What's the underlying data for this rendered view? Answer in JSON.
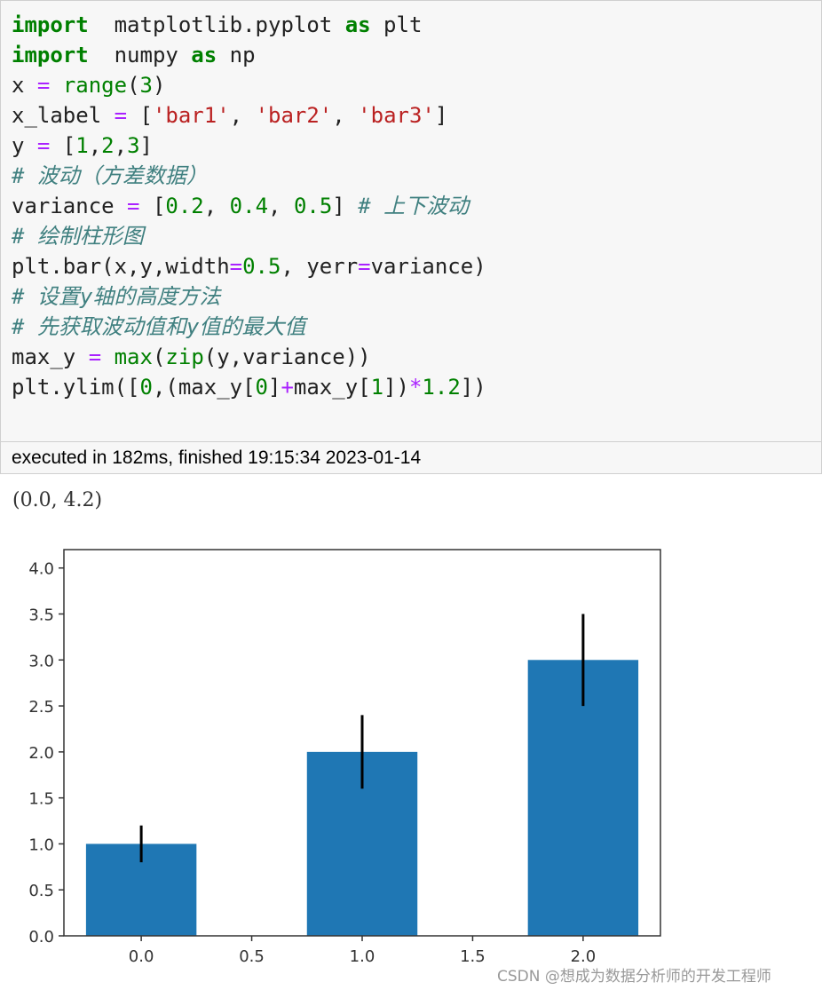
{
  "code_lines": [
    [
      [
        "kw",
        "import"
      ],
      [
        "",
        "  matplotlib.pyplot "
      ],
      [
        "kw",
        "as"
      ],
      [
        "",
        " plt"
      ]
    ],
    [
      [
        "kw",
        "import"
      ],
      [
        "",
        "  numpy "
      ],
      [
        "kw",
        "as"
      ],
      [
        "",
        " np"
      ]
    ],
    [
      [
        "",
        "x "
      ],
      [
        "op",
        "="
      ],
      [
        "",
        " "
      ],
      [
        "bi",
        "range"
      ],
      [
        "",
        "("
      ],
      [
        "num",
        "3"
      ],
      [
        "",
        ")"
      ]
    ],
    [
      [
        "",
        "x_label "
      ],
      [
        "op",
        "="
      ],
      [
        "",
        " ["
      ],
      [
        "str",
        "'bar1'"
      ],
      [
        "",
        ", "
      ],
      [
        "str",
        "'bar2'"
      ],
      [
        "",
        ", "
      ],
      [
        "str",
        "'bar3'"
      ],
      [
        "",
        "]"
      ]
    ],
    [
      [
        "",
        "y "
      ],
      [
        "op",
        "="
      ],
      [
        "",
        " ["
      ],
      [
        "num",
        "1"
      ],
      [
        "",
        ","
      ],
      [
        "num",
        "2"
      ],
      [
        "",
        ","
      ],
      [
        "num",
        "3"
      ],
      [
        "",
        "]"
      ]
    ],
    [
      [
        "cm",
        "# 波动（方差数据）"
      ]
    ],
    [
      [
        "",
        "variance "
      ],
      [
        "op",
        "="
      ],
      [
        "",
        " ["
      ],
      [
        "num",
        "0.2"
      ],
      [
        "",
        ", "
      ],
      [
        "num",
        "0.4"
      ],
      [
        "",
        ", "
      ],
      [
        "num",
        "0.5"
      ],
      [
        "",
        "] "
      ],
      [
        "cm",
        "# 上下波动"
      ]
    ],
    [
      [
        "cm",
        "# 绘制柱形图"
      ]
    ],
    [
      [
        "",
        "plt.bar(x,y,width"
      ],
      [
        "op",
        "="
      ],
      [
        "num",
        "0.5"
      ],
      [
        "",
        ", yerr"
      ],
      [
        "op",
        "="
      ],
      [
        "",
        "variance)"
      ]
    ],
    [
      [
        "cm",
        "# 设置y轴的高度方法"
      ]
    ],
    [
      [
        "cm",
        "# 先获取波动值和y值的最大值"
      ]
    ],
    [
      [
        "",
        "max_y "
      ],
      [
        "op",
        "="
      ],
      [
        "",
        " "
      ],
      [
        "bi",
        "max"
      ],
      [
        "",
        "("
      ],
      [
        "bi",
        "zip"
      ],
      [
        "",
        "(y,variance))"
      ]
    ],
    [
      [
        "",
        "plt.ylim(["
      ],
      [
        "num",
        "0"
      ],
      [
        "",
        ",(max_y["
      ],
      [
        "num",
        "0"
      ],
      [
        "",
        "]"
      ],
      [
        "op",
        "+"
      ],
      [
        "",
        "max_y["
      ],
      [
        "num",
        "1"
      ],
      [
        "",
        "])"
      ],
      [
        "op",
        "*"
      ],
      [
        "num",
        "1.2"
      ],
      [
        "",
        "])"
      ]
    ]
  ],
  "execution": {
    "status": "executed in 182ms, finished 19:15:34 2023-01-14"
  },
  "output_text": "(0.0, 4.2)",
  "chart_data": {
    "type": "bar",
    "x": [
      0,
      1,
      2
    ],
    "values": [
      1,
      2,
      3
    ],
    "yerr": [
      0.2,
      0.4,
      0.5
    ],
    "bar_width": 0.5,
    "xlim": [
      -0.35,
      2.35
    ],
    "ylim": [
      0,
      4.2
    ],
    "xticks": [
      "0.0",
      "0.5",
      "1.0",
      "1.5",
      "2.0"
    ],
    "xtick_values": [
      0,
      0.5,
      1,
      1.5,
      2
    ],
    "yticks": [
      "0.0",
      "0.5",
      "1.0",
      "1.5",
      "2.0",
      "2.5",
      "3.0",
      "3.5",
      "4.0"
    ],
    "ytick_values": [
      0,
      0.5,
      1,
      1.5,
      2,
      2.5,
      3,
      3.5,
      4
    ],
    "bar_color": "#1f77b4",
    "errorbar_color": "#000000"
  },
  "watermark": "CSDN @想成为数据分析师的开发工程师"
}
